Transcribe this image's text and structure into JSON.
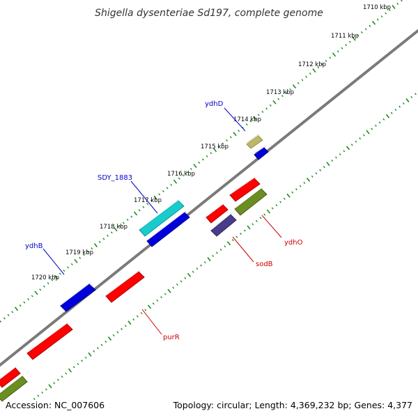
{
  "title": "Shigella dysenteriae Sd197, complete genome",
  "footer": {
    "accession": "Accession: NC_007606",
    "summary": "Topology: circular; Length: 4,369,232 bp; Genes: 4,377"
  },
  "scale_labels": [
    "1710 kbp",
    "1711 kbp",
    "1712 kbp",
    "1713 kbp",
    "1714 kbp",
    "1715 kbp",
    "1716 kbp",
    "1717 kbp",
    "1718 kbp",
    "1719 kbp",
    "1720 kbp"
  ],
  "gene_labels": [
    {
      "name": "ydhD",
      "color": "#0000cc"
    },
    {
      "name": "SDY_1883",
      "color": "#0000cc"
    },
    {
      "name": "ydhB",
      "color": "#0000cc"
    },
    {
      "name": "ydhO",
      "color": "#cc0000"
    },
    {
      "name": "sodB",
      "color": "#cc0000"
    },
    {
      "name": "purR",
      "color": "#cc0000"
    }
  ],
  "colors": {
    "backbone": "#7f7f7f",
    "ticks": "#1e8a1e",
    "red": "#ff0000",
    "blue": "#0000dd",
    "cyan": "#19cccc",
    "olive": "#6b8e23",
    "khaki": "#bdb76b",
    "slate": "#483d8b"
  }
}
